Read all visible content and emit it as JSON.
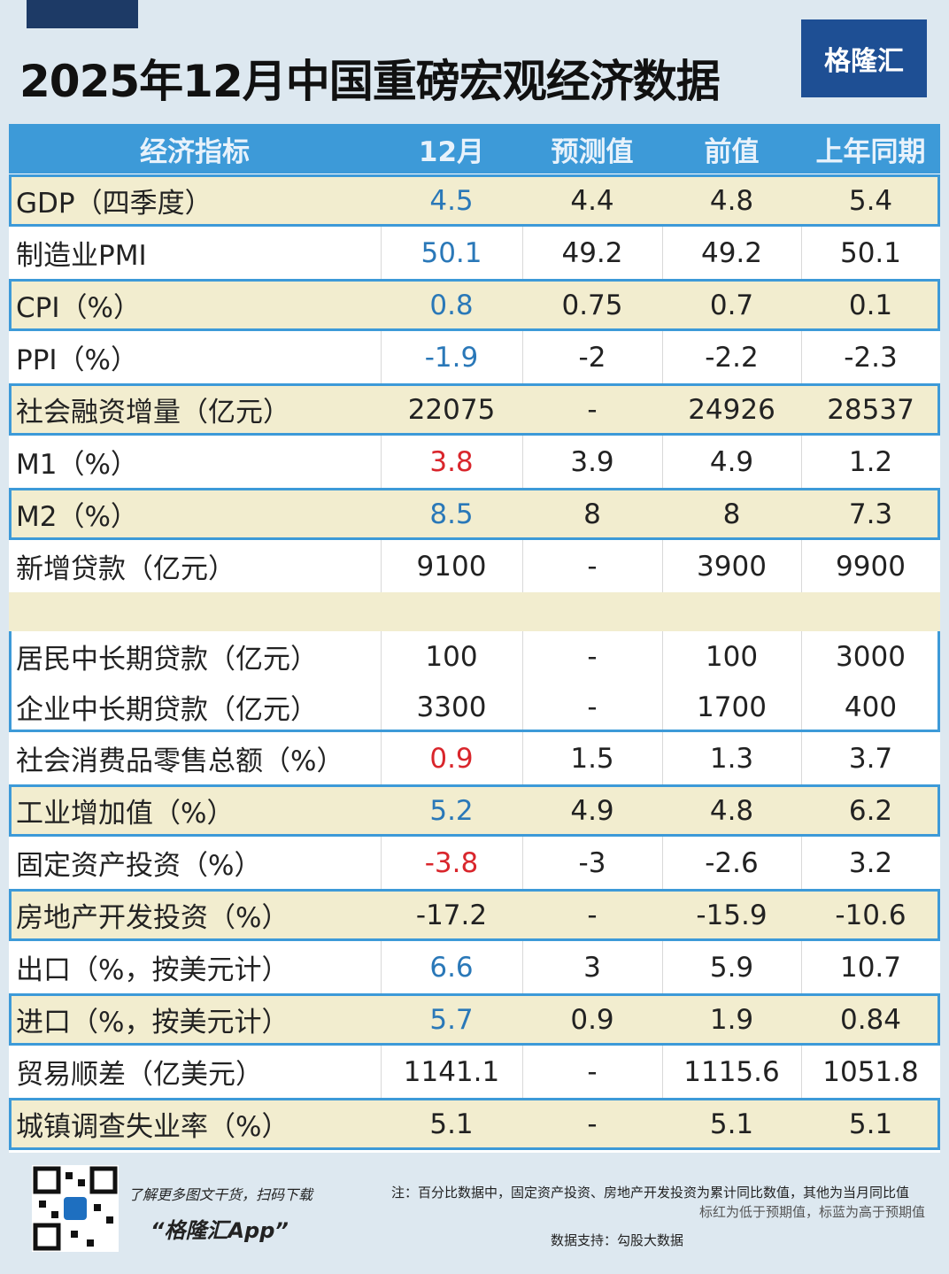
{
  "header": {
    "title": "2025年12月中国重磅宏观经济数据",
    "logo": "格隆汇"
  },
  "table": {
    "columns": [
      "经济指标",
      "12月",
      "预测值",
      "前值",
      "上年同期"
    ],
    "rows": [
      {
        "cells": [
          "GDP（四季度）",
          "4.5",
          "4.4",
          "4.8",
          "5.4"
        ],
        "fill": "#f2edcf",
        "color": "#2a78b8"
      },
      {
        "cells": [
          "制造业PMI",
          "50.1",
          "49.2",
          "49.2",
          "50.1"
        ],
        "fill": "#ffffff",
        "color": "#2a78b8"
      },
      {
        "cells": [
          "CPI（%）",
          "0.8",
          "0.75",
          "0.7",
          "0.1"
        ],
        "fill": "#f2edcf",
        "color": "#2a78b8"
      },
      {
        "cells": [
          "PPI（%）",
          "-1.9",
          "-2",
          "-2.2",
          "-2.3"
        ],
        "fill": "#ffffff",
        "color": "#2a78b8"
      },
      {
        "cells": [
          "社会融资增量（亿元）",
          "22075",
          "-",
          "24926",
          "28537"
        ],
        "fill": "#f2edcf",
        "color": "#222222"
      },
      {
        "cells": [
          "M1（%）",
          "3.8",
          "3.9",
          "4.9",
          "1.2"
        ],
        "fill": "#ffffff",
        "color": "#d9262c"
      },
      {
        "cells": [
          "M2（%）",
          "8.5",
          "8",
          "8",
          "7.3"
        ],
        "fill": "#f2edcf",
        "color": "#2a78b8"
      },
      {
        "cells": [
          "新增贷款（亿元）",
          "9100",
          "-",
          "3900",
          "9900"
        ],
        "fill": "#ffffff",
        "color": "#222222"
      }
    ],
    "loan_breakdown": [
      {
        "cells": [
          "居民中长期贷款（亿元）",
          "100",
          "-",
          "100",
          "3000"
        ],
        "fill": "#ffffff",
        "color": "#222222"
      },
      {
        "cells": [
          "企业中长期贷款（亿元）",
          "3300",
          "-",
          "1700",
          "400"
        ],
        "fill": "#ffffff",
        "color": "#222222"
      }
    ],
    "rows_after": [
      {
        "cells": [
          "社会消费品零售总额（%）",
          "0.9",
          "1.5",
          "1.3",
          "3.7"
        ],
        "fill": "#ffffff",
        "color": "#d9262c"
      },
      {
        "cells": [
          "工业增加值（%）",
          "5.2",
          "4.9",
          "4.8",
          "6.2"
        ],
        "fill": "#f2edcf",
        "color": "#2a78b8"
      },
      {
        "cells": [
          "固定资产投资（%）",
          "-3.8",
          "-3",
          "-2.6",
          "3.2"
        ],
        "fill": "#ffffff",
        "color": "#d9262c"
      },
      {
        "cells": [
          "房地产开发投资（%）",
          "-17.2",
          "-",
          "-15.9",
          "-10.6"
        ],
        "fill": "#f2edcf",
        "color": "#222222"
      },
      {
        "cells": [
          "出口（%，按美元计）",
          "6.6",
          "3",
          "5.9",
          "10.7"
        ],
        "fill": "#ffffff",
        "color": "#2a78b8"
      },
      {
        "cells": [
          "进口（%，按美元计）",
          "5.7",
          "0.9",
          "1.9",
          "0.84"
        ],
        "fill": "#f2edcf",
        "color": "#2a78b8"
      },
      {
        "cells": [
          "贸易顺差（亿美元）",
          "1141.1",
          "-",
          "1115.6",
          "1051.8"
        ],
        "fill": "#ffffff",
        "color": "#222222"
      },
      {
        "cells": [
          "城镇调查失业率（%）",
          "5.1",
          "-",
          "5.1",
          "5.1"
        ],
        "fill": "#f2edcf",
        "color": "#222222"
      }
    ]
  },
  "footer": {
    "promo": "了解更多图文干货，扫码下载",
    "app": "“格隆汇App”",
    "note": "注：百分比数据中，固定资产投资、房地产开发投资为累计同比数值，其他为当月同比值",
    "legend_note": "标红为低于预期值，标蓝为高于预期值",
    "source": "数据支持：勾股大数据"
  }
}
